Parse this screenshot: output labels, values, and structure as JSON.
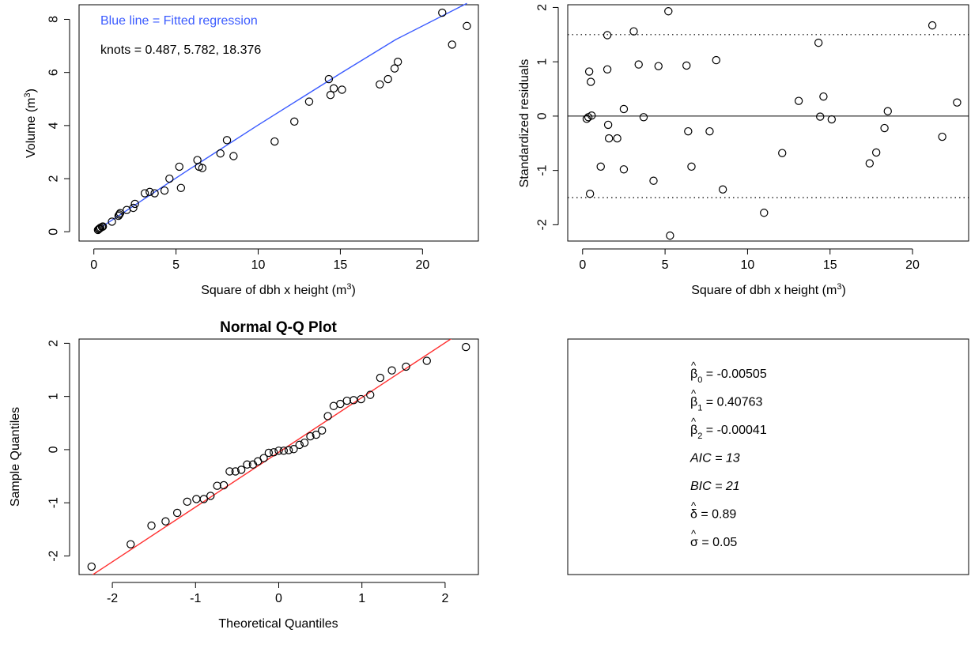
{
  "chart_data": [
    {
      "type": "scatter",
      "xlabel": "Square of dbh x height (m",
      "xlabel_sup": "3",
      "xlabel_tail": ")",
      "ylabel": "Volume (m",
      "ylabel_sup": "3",
      "ylabel_tail": ")",
      "xlim": [
        -0.9,
        23.4
      ],
      "ylim": [
        -0.35,
        8.55
      ],
      "xticks": [
        0,
        5,
        10,
        15,
        20
      ],
      "yticks": [
        0,
        2,
        4,
        6,
        8
      ],
      "annotations": [
        "Blue line = Fitted regression",
        "knots = 0.487, 5.782, 18.376"
      ],
      "colors": {
        "fit": "#3b5bff",
        "legend_text": "#3b5bff"
      },
      "series": [
        {
          "points": [
            [
              0.25,
              0.07
            ],
            [
              0.3,
              0.1
            ],
            [
              0.35,
              0.12
            ],
            [
              0.4,
              0.15
            ],
            [
              0.5,
              0.18
            ],
            [
              0.55,
              0.2
            ],
            [
              1.1,
              0.38
            ],
            [
              1.5,
              0.6
            ],
            [
              1.55,
              0.65
            ],
            [
              1.6,
              0.7
            ],
            [
              2.0,
              0.82
            ],
            [
              2.4,
              0.9
            ],
            [
              2.5,
              1.05
            ],
            [
              3.1,
              1.45
            ],
            [
              3.4,
              1.5
            ],
            [
              3.7,
              1.45
            ],
            [
              4.3,
              1.55
            ],
            [
              4.6,
              2.0
            ],
            [
              5.2,
              2.45
            ],
            [
              5.3,
              1.65
            ],
            [
              6.3,
              2.7
            ],
            [
              6.4,
              2.45
            ],
            [
              6.6,
              2.4
            ],
            [
              7.7,
              2.95
            ],
            [
              8.1,
              3.45
            ],
            [
              8.5,
              2.85
            ],
            [
              11.0,
              3.4
            ],
            [
              12.2,
              4.15
            ],
            [
              13.1,
              4.9
            ],
            [
              14.3,
              5.75
            ],
            [
              14.4,
              5.15
            ],
            [
              14.6,
              5.4
            ],
            [
              15.1,
              5.35
            ],
            [
              17.4,
              5.55
            ],
            [
              17.9,
              5.75
            ],
            [
              18.3,
              6.15
            ],
            [
              18.5,
              6.4
            ],
            [
              21.2,
              8.25
            ],
            [
              21.8,
              7.05
            ],
            [
              22.7,
              7.75
            ]
          ]
        },
        {
          "name": "Fitted regression",
          "line": [
            [
              0.487,
              0.19
            ],
            [
              5.782,
              2.34
            ],
            [
              10,
              4.02
            ],
            [
              15,
              5.96
            ],
            [
              18.376,
              7.24
            ],
            [
              22.7,
              8.6
            ]
          ]
        }
      ]
    },
    {
      "type": "scatter",
      "xlabel": "Square of dbh x height (m",
      "xlabel_sup": "3",
      "xlabel_tail": ")",
      "ylabel": "Standardized residuals",
      "xlim": [
        -0.9,
        23.4
      ],
      "ylim": [
        -2.3,
        2.05
      ],
      "xticks": [
        0,
        5,
        10,
        15,
        20
      ],
      "yticks": [
        -2,
        -1,
        0,
        1,
        2
      ],
      "hlines": [
        0
      ],
      "dotted_hlines": [
        1.5,
        -1.5
      ],
      "series": [
        {
          "points": [
            [
              0.25,
              -0.05
            ],
            [
              0.35,
              -0.02
            ],
            [
              0.4,
              0.82
            ],
            [
              0.45,
              -1.43
            ],
            [
              0.5,
              0.63
            ],
            [
              0.55,
              0.01
            ],
            [
              1.1,
              -0.93
            ],
            [
              1.5,
              1.49
            ],
            [
              1.5,
              0.86
            ],
            [
              1.55,
              -0.16
            ],
            [
              1.6,
              -0.41
            ],
            [
              2.1,
              -0.41
            ],
            [
              2.5,
              0.13
            ],
            [
              2.5,
              -0.98
            ],
            [
              3.1,
              1.56
            ],
            [
              3.4,
              0.95
            ],
            [
              3.7,
              -0.02
            ],
            [
              4.3,
              -1.19
            ],
            [
              4.6,
              0.92
            ],
            [
              5.2,
              1.93
            ],
            [
              5.3,
              -2.2
            ],
            [
              6.3,
              0.93
            ],
            [
              6.4,
              -0.28
            ],
            [
              6.6,
              -0.93
            ],
            [
              7.7,
              -0.28
            ],
            [
              8.1,
              1.03
            ],
            [
              8.5,
              -1.35
            ],
            [
              11.0,
              -1.78
            ],
            [
              12.1,
              -0.68
            ],
            [
              13.1,
              0.28
            ],
            [
              14.3,
              1.35
            ],
            [
              14.4,
              -0.01
            ],
            [
              14.6,
              0.36
            ],
            [
              15.1,
              -0.06
            ],
            [
              17.4,
              -0.87
            ],
            [
              17.8,
              -0.67
            ],
            [
              18.3,
              -0.22
            ],
            [
              18.5,
              0.09
            ],
            [
              21.2,
              1.67
            ],
            [
              21.8,
              -0.38
            ],
            [
              22.7,
              0.25
            ]
          ]
        }
      ]
    },
    {
      "type": "scatter",
      "title": "Normal Q-Q Plot",
      "xlabel": "Theoretical Quantiles",
      "ylabel": "Sample Quantiles",
      "xlim": [
        -2.4,
        2.4
      ],
      "ylim": [
        -2.35,
        2.08
      ],
      "xticks": [
        -2,
        -1,
        0,
        1,
        2
      ],
      "yticks": [
        -2,
        -1,
        0,
        1,
        2
      ],
      "colors": {
        "qq_line": "#ff3030"
      },
      "qq_line": {
        "slope": 1.03,
        "intercept": -0.05
      },
      "series": [
        {
          "points": [
            [
              -2.25,
              -2.2
            ],
            [
              -1.78,
              -1.78
            ],
            [
              -1.53,
              -1.43
            ],
            [
              -1.36,
              -1.35
            ],
            [
              -1.22,
              -1.19
            ],
            [
              -1.1,
              -0.98
            ],
            [
              -0.99,
              -0.93
            ],
            [
              -0.9,
              -0.93
            ],
            [
              -0.82,
              -0.87
            ],
            [
              -0.74,
              -0.68
            ],
            [
              -0.66,
              -0.67
            ],
            [
              -0.59,
              -0.41
            ],
            [
              -0.52,
              -0.41
            ],
            [
              -0.45,
              -0.38
            ],
            [
              -0.38,
              -0.28
            ],
            [
              -0.31,
              -0.28
            ],
            [
              -0.25,
              -0.22
            ],
            [
              -0.18,
              -0.16
            ],
            [
              -0.12,
              -0.06
            ],
            [
              -0.06,
              -0.05
            ],
            [
              0.0,
              -0.02
            ],
            [
              0.06,
              -0.02
            ],
            [
              0.12,
              -0.01
            ],
            [
              0.18,
              0.01
            ],
            [
              0.25,
              0.09
            ],
            [
              0.31,
              0.13
            ],
            [
              0.38,
              0.25
            ],
            [
              0.45,
              0.28
            ],
            [
              0.52,
              0.36
            ],
            [
              0.59,
              0.63
            ],
            [
              0.66,
              0.82
            ],
            [
              0.74,
              0.86
            ],
            [
              0.82,
              0.92
            ],
            [
              0.9,
              0.93
            ],
            [
              0.99,
              0.95
            ],
            [
              1.1,
              1.03
            ],
            [
              1.22,
              1.35
            ],
            [
              1.36,
              1.49
            ],
            [
              1.53,
              1.56
            ],
            [
              1.78,
              1.67
            ],
            [
              2.25,
              1.93
            ]
          ]
        }
      ]
    }
  ],
  "stats_box": [
    {
      "symbol": "β",
      "sub": "0",
      "value": "-0.00505"
    },
    {
      "symbol": "β",
      "sub": "1",
      "value": "0.40763"
    },
    {
      "symbol": "β",
      "sub": "2",
      "value": "-0.00041"
    },
    {
      "label": "AIC",
      "value": "13"
    },
    {
      "label": "BIC",
      "value": "21"
    },
    {
      "symbol": "δ",
      "sub": "",
      "value": "0.89"
    },
    {
      "symbol": "σ",
      "sub": "",
      "value": "0.05"
    }
  ]
}
